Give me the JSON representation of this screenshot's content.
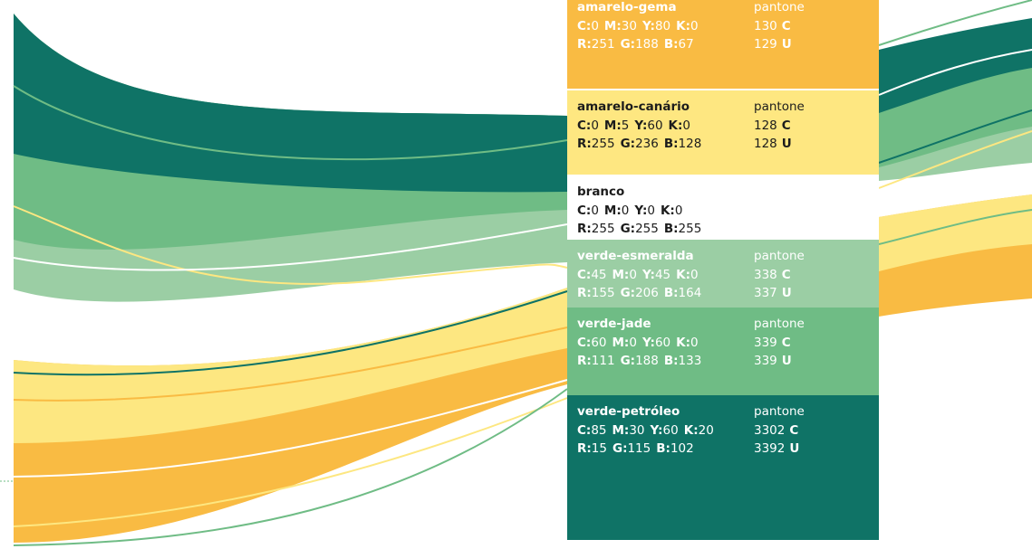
{
  "swatches": [
    {
      "name": "amarelo-gema",
      "cmyk": [
        {
          "key": "C:",
          "value": "0"
        },
        {
          "key": "M:",
          "value": "30"
        },
        {
          "key": "Y:",
          "value": "80"
        },
        {
          "key": "K:",
          "value": "0"
        }
      ],
      "rgb": [
        {
          "key": "R:",
          "value": "251"
        },
        {
          "key": "G:",
          "value": "188"
        },
        {
          "key": "B:",
          "value": "67"
        }
      ],
      "pantone": {
        "label": "pantone",
        "lines": [
          {
            "code": "130",
            "type": "C"
          },
          {
            "code": "129",
            "type": "U"
          }
        ]
      }
    },
    {
      "name": "amarelo-canário",
      "cmyk": [
        {
          "key": "C:",
          "value": "0"
        },
        {
          "key": "M:",
          "value": "5"
        },
        {
          "key": "Y:",
          "value": "60"
        },
        {
          "key": "K:",
          "value": "0"
        }
      ],
      "rgb": [
        {
          "key": "R:",
          "value": "255"
        },
        {
          "key": "G:",
          "value": "236"
        },
        {
          "key": "B:",
          "value": "128"
        }
      ],
      "pantone": {
        "label": "pantone",
        "lines": [
          {
            "code": "128",
            "type": "C"
          },
          {
            "code": "128",
            "type": "U"
          }
        ]
      }
    },
    {
      "name": "branco",
      "cmyk": [
        {
          "key": "C:",
          "value": "0"
        },
        {
          "key": "M:",
          "value": "0"
        },
        {
          "key": "Y:",
          "value": "0"
        },
        {
          "key": "K:",
          "value": "0"
        }
      ],
      "rgb": [
        {
          "key": "R:",
          "value": "255"
        },
        {
          "key": "G:",
          "value": "255"
        },
        {
          "key": "B:",
          "value": "255"
        }
      ]
    },
    {
      "name": "verde-esmeralda",
      "cmyk": [
        {
          "key": "C:",
          "value": "45"
        },
        {
          "key": "M:",
          "value": "0"
        },
        {
          "key": "Y:",
          "value": "45"
        },
        {
          "key": "K:",
          "value": "0"
        }
      ],
      "rgb": [
        {
          "key": "R:",
          "value": "155"
        },
        {
          "key": "G:",
          "value": "206"
        },
        {
          "key": "B:",
          "value": "164"
        }
      ],
      "pantone": {
        "label": "pantone",
        "lines": [
          {
            "code": "338",
            "type": "C"
          },
          {
            "code": "337",
            "type": "U"
          }
        ]
      }
    },
    {
      "name": "verde-jade",
      "cmyk": [
        {
          "key": "C:",
          "value": "60"
        },
        {
          "key": "M:",
          "value": "0"
        },
        {
          "key": "Y:",
          "value": "60"
        },
        {
          "key": "K:",
          "value": "0"
        }
      ],
      "rgb": [
        {
          "key": "R:",
          "value": "111"
        },
        {
          "key": "G:",
          "value": "188"
        },
        {
          "key": "B:",
          "value": "133"
        }
      ],
      "pantone": {
        "label": "pantone",
        "lines": [
          {
            "code": "339",
            "type": "C"
          },
          {
            "code": "339",
            "type": "U"
          }
        ]
      }
    },
    {
      "name": "verde-petróleo",
      "cmyk": [
        {
          "key": "C:",
          "value": "85"
        },
        {
          "key": "M:",
          "value": "30"
        },
        {
          "key": "Y:",
          "value": "60"
        },
        {
          "key": "K:",
          "value": "20"
        }
      ],
      "rgb": [
        {
          "key": "R:",
          "value": "15"
        },
        {
          "key": "G:",
          "value": "115"
        },
        {
          "key": "B:",
          "value": "102"
        }
      ],
      "pantone": {
        "label": "pantone",
        "lines": [
          {
            "code": "3302",
            "type": "C"
          },
          {
            "code": "3392",
            "type": "U"
          }
        ]
      }
    }
  ]
}
